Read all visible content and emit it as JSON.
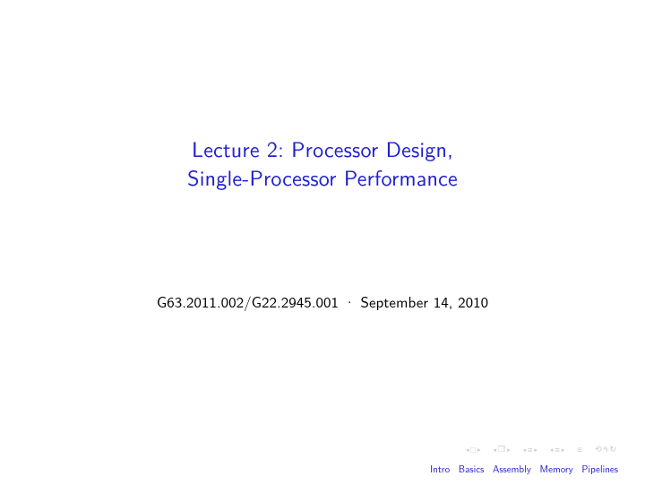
{
  "colors": {
    "title": "#2020cc",
    "body": "#000000",
    "nav_inactive": "#c8c8d8",
    "background": "#ffffff"
  },
  "typography": {
    "title_fontsize": 24,
    "subtitle_fontsize": 17,
    "footline_fontsize": 11
  },
  "title": {
    "line1": "Lecture 2: Processor Design,",
    "line2": "Single-Processor Performance"
  },
  "subtitle": "G63.2011.002/G22.2945.001 · September 14, 2010",
  "nav_symbols": {
    "g1": "◂ □ ▸",
    "g2": "◂ 🗗 ▸",
    "g3": "◂ ≣ ▸",
    "g4": "◂ ≣ ▸",
    "g5": "≣",
    "g6": "⟲ ९ ୯"
  },
  "sections": {
    "s1": "Intro",
    "s2": "Basics",
    "s3": "Assembly",
    "s4": "Memory",
    "s5": "Pipelines"
  }
}
